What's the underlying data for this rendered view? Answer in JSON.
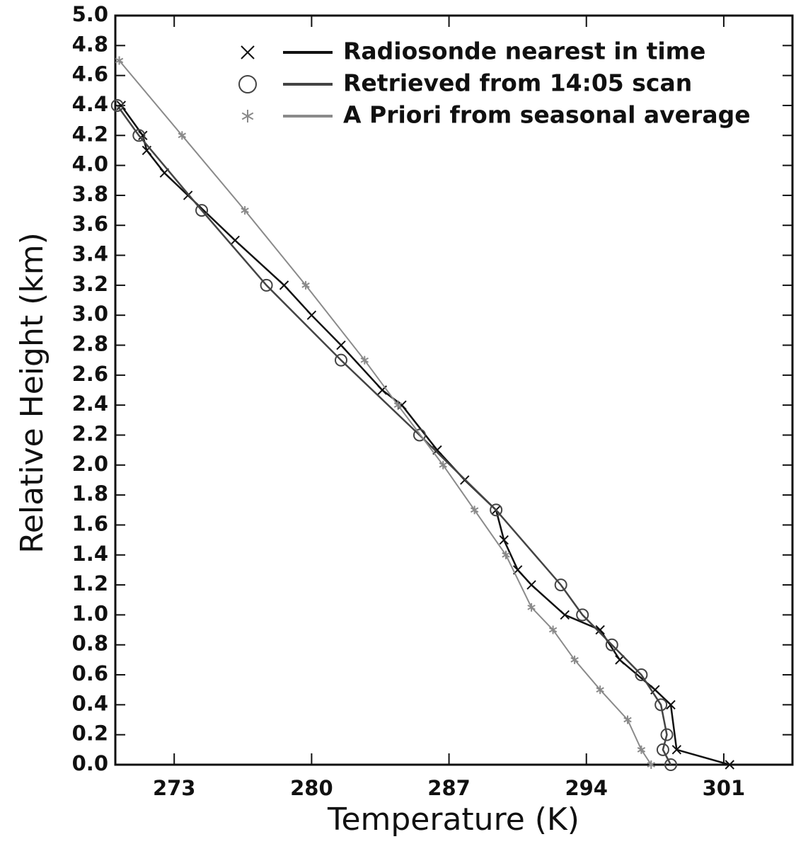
{
  "chart_data": {
    "type": "line",
    "xlabel": "Temperature (K)",
    "ylabel": "Relative Height (km)",
    "xlim": [
      270,
      304.5
    ],
    "ylim": [
      0,
      5
    ],
    "xticks": [
      273,
      280,
      287,
      294,
      301
    ],
    "yticks": [
      {
        "value": 0,
        "label": "0.0"
      },
      0.2,
      0.4,
      0.6,
      0.8,
      {
        "value": 1,
        "label": "1.0"
      },
      1.2,
      1.4,
      1.6,
      1.8,
      {
        "value": 2,
        "label": "2.0"
      },
      2.2,
      2.4,
      2.6,
      2.8,
      {
        "value": 3,
        "label": "3.0"
      },
      3.2,
      3.4,
      3.6,
      3.8,
      {
        "value": 4,
        "label": "4.0"
      },
      4.2,
      4.4,
      4.6,
      4.8,
      {
        "value": 5,
        "label": "5.0"
      }
    ],
    "legend": "top-right",
    "series": [
      {
        "name": "Radiosonde nearest in time",
        "color": "#111111",
        "marker": "x",
        "x": [
          301.3,
          298.6,
          298.3,
          297.5,
          295.7,
          294.7,
          292.9,
          291.2,
          290.5,
          289.8,
          289.4,
          287.8,
          286.4,
          284.6,
          283.6,
          281.5,
          280.0,
          278.6,
          276.1,
          273.7,
          272.5,
          271.6,
          271.4,
          270.3
        ],
        "values": [
          0.0,
          0.1,
          0.4,
          0.5,
          0.7,
          0.9,
          1.0,
          1.2,
          1.3,
          1.5,
          1.7,
          1.9,
          2.1,
          2.4,
          2.5,
          2.8,
          3.0,
          3.2,
          3.5,
          3.8,
          3.95,
          4.1,
          4.2,
          4.4
        ]
      },
      {
        "name": "Retrieved from 14:05 scan",
        "color": "#444444",
        "marker": "o",
        "x": [
          298.3,
          297.9,
          298.1,
          297.8,
          296.8,
          295.3,
          293.8,
          292.7,
          289.4,
          285.5,
          281.5,
          277.7,
          274.4,
          271.2,
          270.1
        ],
        "values": [
          0.0,
          0.1,
          0.2,
          0.4,
          0.6,
          0.8,
          1.0,
          1.2,
          1.7,
          2.2,
          2.7,
          3.2,
          3.7,
          4.2,
          4.4
        ]
      },
      {
        "name": "A Priori from seasonal average",
        "color": "#8a8a8a",
        "marker": "*",
        "x": [
          297.3,
          296.8,
          296.1,
          294.7,
          293.4,
          292.3,
          291.2,
          289.9,
          288.3,
          286.7,
          284.4,
          282.7,
          279.7,
          276.6,
          273.4,
          270.2
        ],
        "values": [
          0.0,
          0.1,
          0.3,
          0.5,
          0.7,
          0.9,
          1.05,
          1.4,
          1.7,
          2.0,
          2.4,
          2.7,
          3.2,
          3.7,
          4.2,
          4.7
        ]
      }
    ]
  }
}
